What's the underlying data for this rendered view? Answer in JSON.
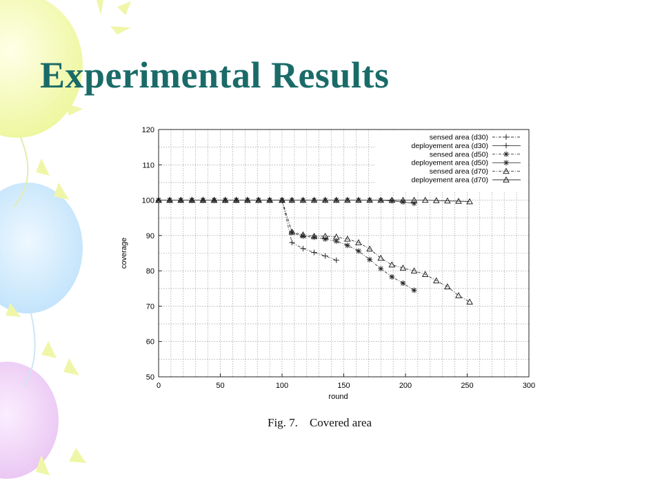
{
  "slide": {
    "title": "Experimental Results",
    "caption_label": "Fig. 7.",
    "caption_text": "Covered area",
    "title_color": "#1a6b68"
  },
  "chart_data": {
    "type": "line",
    "title": "",
    "xlabel": "round",
    "ylabel": "coverage",
    "xlim": [
      0,
      300
    ],
    "ylim": [
      50,
      120
    ],
    "xticks": [
      0,
      50,
      100,
      150,
      200,
      250,
      300
    ],
    "yticks": [
      50,
      60,
      70,
      80,
      90,
      100,
      110,
      120
    ],
    "grid": true,
    "legend_position": "top-right",
    "series": [
      {
        "name": "sensed area (d30)",
        "marker": "plus",
        "line": "dashdot",
        "points": [
          [
            0,
            100
          ],
          [
            9,
            100
          ],
          [
            18,
            100
          ],
          [
            27,
            100
          ],
          [
            36,
            100
          ],
          [
            45,
            100
          ],
          [
            54,
            100
          ],
          [
            63,
            100
          ],
          [
            72,
            100
          ],
          [
            81,
            100
          ],
          [
            90,
            100
          ],
          [
            100,
            100
          ],
          [
            108,
            88
          ],
          [
            117,
            86.3
          ],
          [
            126,
            85.2
          ],
          [
            135,
            84.2
          ],
          [
            144,
            83
          ]
        ]
      },
      {
        "name": "deployement area (d30)",
        "marker": "plus",
        "line": "solid",
        "points": [
          [
            0,
            100
          ],
          [
            9,
            100
          ],
          [
            18,
            100
          ],
          [
            27,
            100
          ],
          [
            36,
            100
          ],
          [
            45,
            100
          ],
          [
            54,
            100
          ],
          [
            63,
            100
          ],
          [
            72,
            100
          ],
          [
            81,
            100
          ],
          [
            90,
            100
          ],
          [
            100,
            100
          ],
          [
            108,
            100
          ],
          [
            117,
            100
          ],
          [
            126,
            100
          ],
          [
            135,
            100
          ],
          [
            144,
            100
          ]
        ]
      },
      {
        "name": "sensed area (d50)",
        "marker": "star",
        "line": "dashdot",
        "points": [
          [
            0,
            100
          ],
          [
            9,
            100
          ],
          [
            18,
            100
          ],
          [
            27,
            100
          ],
          [
            36,
            100
          ],
          [
            45,
            100
          ],
          [
            54,
            100
          ],
          [
            63,
            100
          ],
          [
            72,
            100
          ],
          [
            81,
            100
          ],
          [
            90,
            100
          ],
          [
            100,
            100
          ],
          [
            108,
            90.8
          ],
          [
            117,
            89.8
          ],
          [
            126,
            89.5
          ],
          [
            135,
            89
          ],
          [
            144,
            88.4
          ],
          [
            153,
            87.2
          ],
          [
            162,
            85.6
          ],
          [
            171,
            83.2
          ],
          [
            180,
            80.6
          ],
          [
            189,
            78.3
          ],
          [
            198,
            76.5
          ],
          [
            207,
            74.5
          ]
        ]
      },
      {
        "name": "deployement area (d50)",
        "marker": "star",
        "line": "solid",
        "points": [
          [
            0,
            100
          ],
          [
            9,
            100
          ],
          [
            18,
            100
          ],
          [
            27,
            100
          ],
          [
            36,
            100
          ],
          [
            45,
            100
          ],
          [
            54,
            100
          ],
          [
            63,
            100
          ],
          [
            72,
            100
          ],
          [
            81,
            100
          ],
          [
            90,
            100
          ],
          [
            100,
            100
          ],
          [
            108,
            100
          ],
          [
            117,
            100
          ],
          [
            126,
            100
          ],
          [
            135,
            100
          ],
          [
            144,
            100
          ],
          [
            153,
            100
          ],
          [
            162,
            100
          ],
          [
            171,
            100
          ],
          [
            180,
            100
          ],
          [
            189,
            99.8
          ],
          [
            198,
            99.5
          ],
          [
            207,
            99.1
          ]
        ]
      },
      {
        "name": "sensed area (d70)",
        "marker": "triangle",
        "line": "dashdot",
        "points": [
          [
            0,
            100
          ],
          [
            9,
            100
          ],
          [
            18,
            100
          ],
          [
            27,
            100
          ],
          [
            36,
            100
          ],
          [
            45,
            100
          ],
          [
            54,
            100
          ],
          [
            63,
            100
          ],
          [
            72,
            100
          ],
          [
            81,
            100
          ],
          [
            90,
            100
          ],
          [
            100,
            100
          ],
          [
            108,
            91
          ],
          [
            117,
            90.2
          ],
          [
            126,
            89.8
          ],
          [
            135,
            89.8
          ],
          [
            144,
            89.6
          ],
          [
            153,
            89
          ],
          [
            162,
            88
          ],
          [
            171,
            86.2
          ],
          [
            180,
            83.6
          ],
          [
            189,
            81.7
          ],
          [
            198,
            80.8
          ],
          [
            207,
            80
          ],
          [
            216,
            79
          ],
          [
            225,
            77.2
          ],
          [
            234,
            75.5
          ],
          [
            243,
            73
          ],
          [
            252,
            71.2
          ]
        ]
      },
      {
        "name": "deployement area (d70)",
        "marker": "triangle",
        "line": "solid",
        "points": [
          [
            0,
            100
          ],
          [
            9,
            100
          ],
          [
            18,
            100
          ],
          [
            27,
            100
          ],
          [
            36,
            100
          ],
          [
            45,
            100
          ],
          [
            54,
            100
          ],
          [
            63,
            100
          ],
          [
            72,
            100
          ],
          [
            81,
            100
          ],
          [
            90,
            100
          ],
          [
            100,
            100
          ],
          [
            108,
            100
          ],
          [
            117,
            100
          ],
          [
            126,
            100
          ],
          [
            135,
            100
          ],
          [
            144,
            100
          ],
          [
            153,
            100
          ],
          [
            162,
            100
          ],
          [
            171,
            100
          ],
          [
            180,
            100
          ],
          [
            189,
            100
          ],
          [
            198,
            100
          ],
          [
            207,
            100
          ],
          [
            216,
            100
          ],
          [
            225,
            99.9
          ],
          [
            234,
            99.8
          ],
          [
            243,
            99.7
          ],
          [
            252,
            99.6
          ]
        ]
      }
    ]
  }
}
